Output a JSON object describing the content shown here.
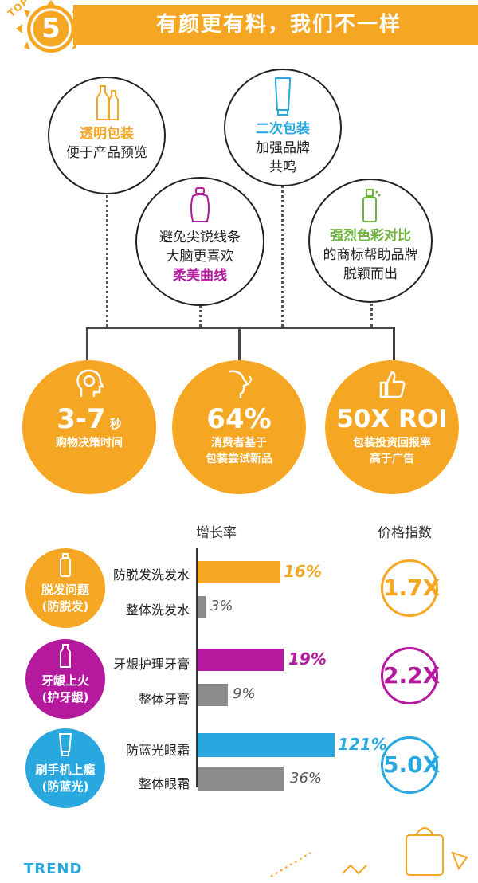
{
  "header": {
    "number": "5",
    "title": "有颜更有料，我们不一样",
    "corner_top": "TOP",
    "corner_bottom": "TREND"
  },
  "circles": {
    "transparent": {
      "title": "透明包装",
      "line1": "便于产品预览"
    },
    "secondary": {
      "title": "二次包装",
      "line1": "加强品牌",
      "line2": "共鸣"
    },
    "curves": {
      "line1": "避免尖锐线条",
      "line2": "大脑更喜欢",
      "title": "柔美曲线"
    },
    "contrast": {
      "title": "强烈色彩对比",
      "line1": "的商标帮助品牌",
      "line2": "脱颖而出"
    }
  },
  "stats": [
    {
      "value": "3-7",
      "unit": "秒",
      "caption1": "购物决策时间",
      "caption2": ""
    },
    {
      "value": "64%",
      "unit": "",
      "caption1": "消费者基于",
      "caption2": "包装尝试新品"
    },
    {
      "value": "50X ROI",
      "unit": "",
      "caption1": "包装投资回报率",
      "caption2": "高于广告"
    }
  ],
  "bottom": {
    "growth_header": "增长率",
    "price_header": "价格指数",
    "groups": [
      {
        "cat1": "脱发问题",
        "cat2": "(防脱发)",
        "color": "#F5A623",
        "bar1_label": "防脱发洗发水",
        "bar1_value": "16%",
        "bar2_label": "整体洗发水",
        "bar2_value": "3%",
        "index": "1.7X"
      },
      {
        "cat1": "牙龈上火",
        "cat2": "(护牙龈)",
        "color": "#B4199E",
        "bar1_label": "牙龈护理牙膏",
        "bar1_value": "19%",
        "bar2_label": "整体牙膏",
        "bar2_value": "9%",
        "index": "2.2X"
      },
      {
        "cat1": "刷手机上瘾",
        "cat2": "(防蓝光)",
        "color": "#29A8E0",
        "bar1_label": "防蓝光眼霜",
        "bar1_value": "121%",
        "bar2_label": "整体眼霜",
        "bar2_value": "36%",
        "index": "5.0X"
      }
    ]
  },
  "icons": [
    "bottles-icon",
    "tube-icon",
    "curved-bottle-icon",
    "spray-bottle-icon",
    "head-gear-icon",
    "face-profile-icon",
    "thumbs-up-icon",
    "shopping-bag-icon"
  ]
}
